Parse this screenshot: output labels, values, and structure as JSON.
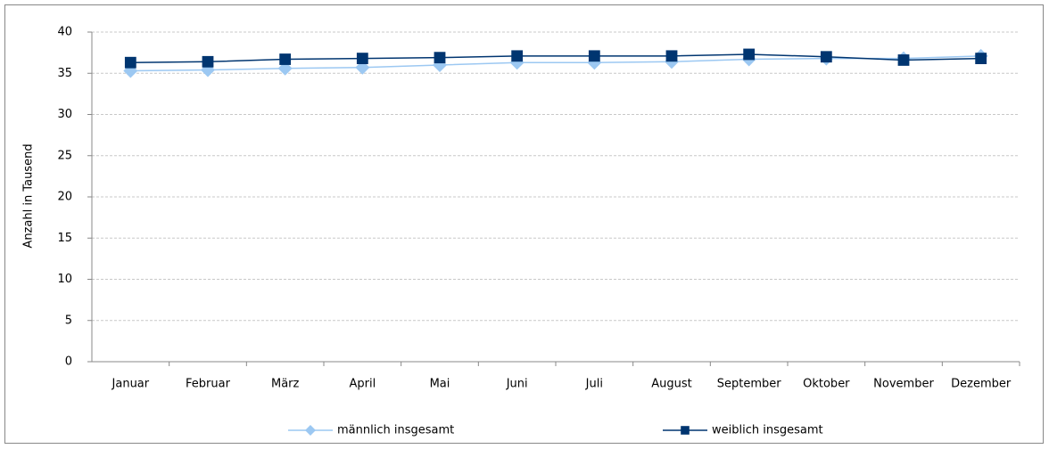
{
  "chart_data": {
    "type": "line",
    "y_label": "Anzahl in Tausend",
    "categories": [
      "Januar",
      "Februar",
      "März",
      "April",
      "Mai",
      "Juni",
      "Juli",
      "August",
      "September",
      "Oktober",
      "November",
      "Dezember"
    ],
    "series": [
      {
        "name": "männlich insgesamt",
        "color": "#9cc8f2",
        "marker": "diamond",
        "values": [
          35.3,
          35.4,
          35.6,
          35.7,
          36.0,
          36.3,
          36.3,
          36.4,
          36.7,
          36.8,
          36.8,
          37.1
        ]
      },
      {
        "name": "weiblich insgesamt",
        "color": "#003570",
        "marker": "square",
        "values": [
          36.3,
          36.4,
          36.7,
          36.8,
          36.9,
          37.1,
          37.1,
          37.1,
          37.3,
          37.0,
          36.6,
          36.8
        ]
      }
    ],
    "ylim": [
      0,
      40
    ],
    "yticks": [
      0,
      5,
      10,
      15,
      20,
      25,
      30,
      35,
      40
    ],
    "grid": true
  }
}
